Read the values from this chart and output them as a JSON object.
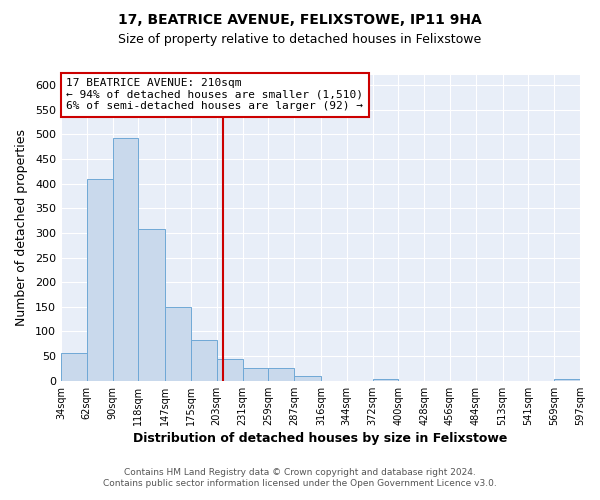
{
  "title": "17, BEATRICE AVENUE, FELIXSTOWE, IP11 9HA",
  "subtitle": "Size of property relative to detached houses in Felixstowe",
  "xlabel": "Distribution of detached houses by size in Felixstowe",
  "ylabel": "Number of detached properties",
  "bin_edges": [
    34,
    62,
    90,
    118,
    147,
    175,
    203,
    231,
    259,
    287,
    316,
    344,
    372,
    400,
    428,
    456,
    484,
    513,
    541,
    569,
    597
  ],
  "bar_heights": [
    57,
    410,
    493,
    307,
    150,
    82,
    45,
    25,
    25,
    10,
    0,
    0,
    3,
    0,
    0,
    0,
    0,
    0,
    0,
    3
  ],
  "bar_color": "#c9d9ec",
  "bar_edge_color": "#6fa8d6",
  "vline_x": 210,
  "vline_color": "#cc0000",
  "ylim": [
    0,
    620
  ],
  "yticks": [
    0,
    50,
    100,
    150,
    200,
    250,
    300,
    350,
    400,
    450,
    500,
    550,
    600
  ],
  "annotation_title": "17 BEATRICE AVENUE: 210sqm",
  "annotation_line1": "← 94% of detached houses are smaller (1,510)",
  "annotation_line2": "6% of semi-detached houses are larger (92) →",
  "annotation_box_color": "#ffffff",
  "annotation_box_edge_color": "#cc0000",
  "footer_line1": "Contains HM Land Registry data © Crown copyright and database right 2024.",
  "footer_line2": "Contains public sector information licensed under the Open Government Licence v3.0.",
  "plot_bg_color": "#e8eef8",
  "fig_bg_color": "#ffffff",
  "tick_labels": [
    "34sqm",
    "62sqm",
    "90sqm",
    "118sqm",
    "147sqm",
    "175sqm",
    "203sqm",
    "231sqm",
    "259sqm",
    "287sqm",
    "316sqm",
    "344sqm",
    "372sqm",
    "400sqm",
    "428sqm",
    "456sqm",
    "484sqm",
    "513sqm",
    "541sqm",
    "569sqm",
    "597sqm"
  ]
}
